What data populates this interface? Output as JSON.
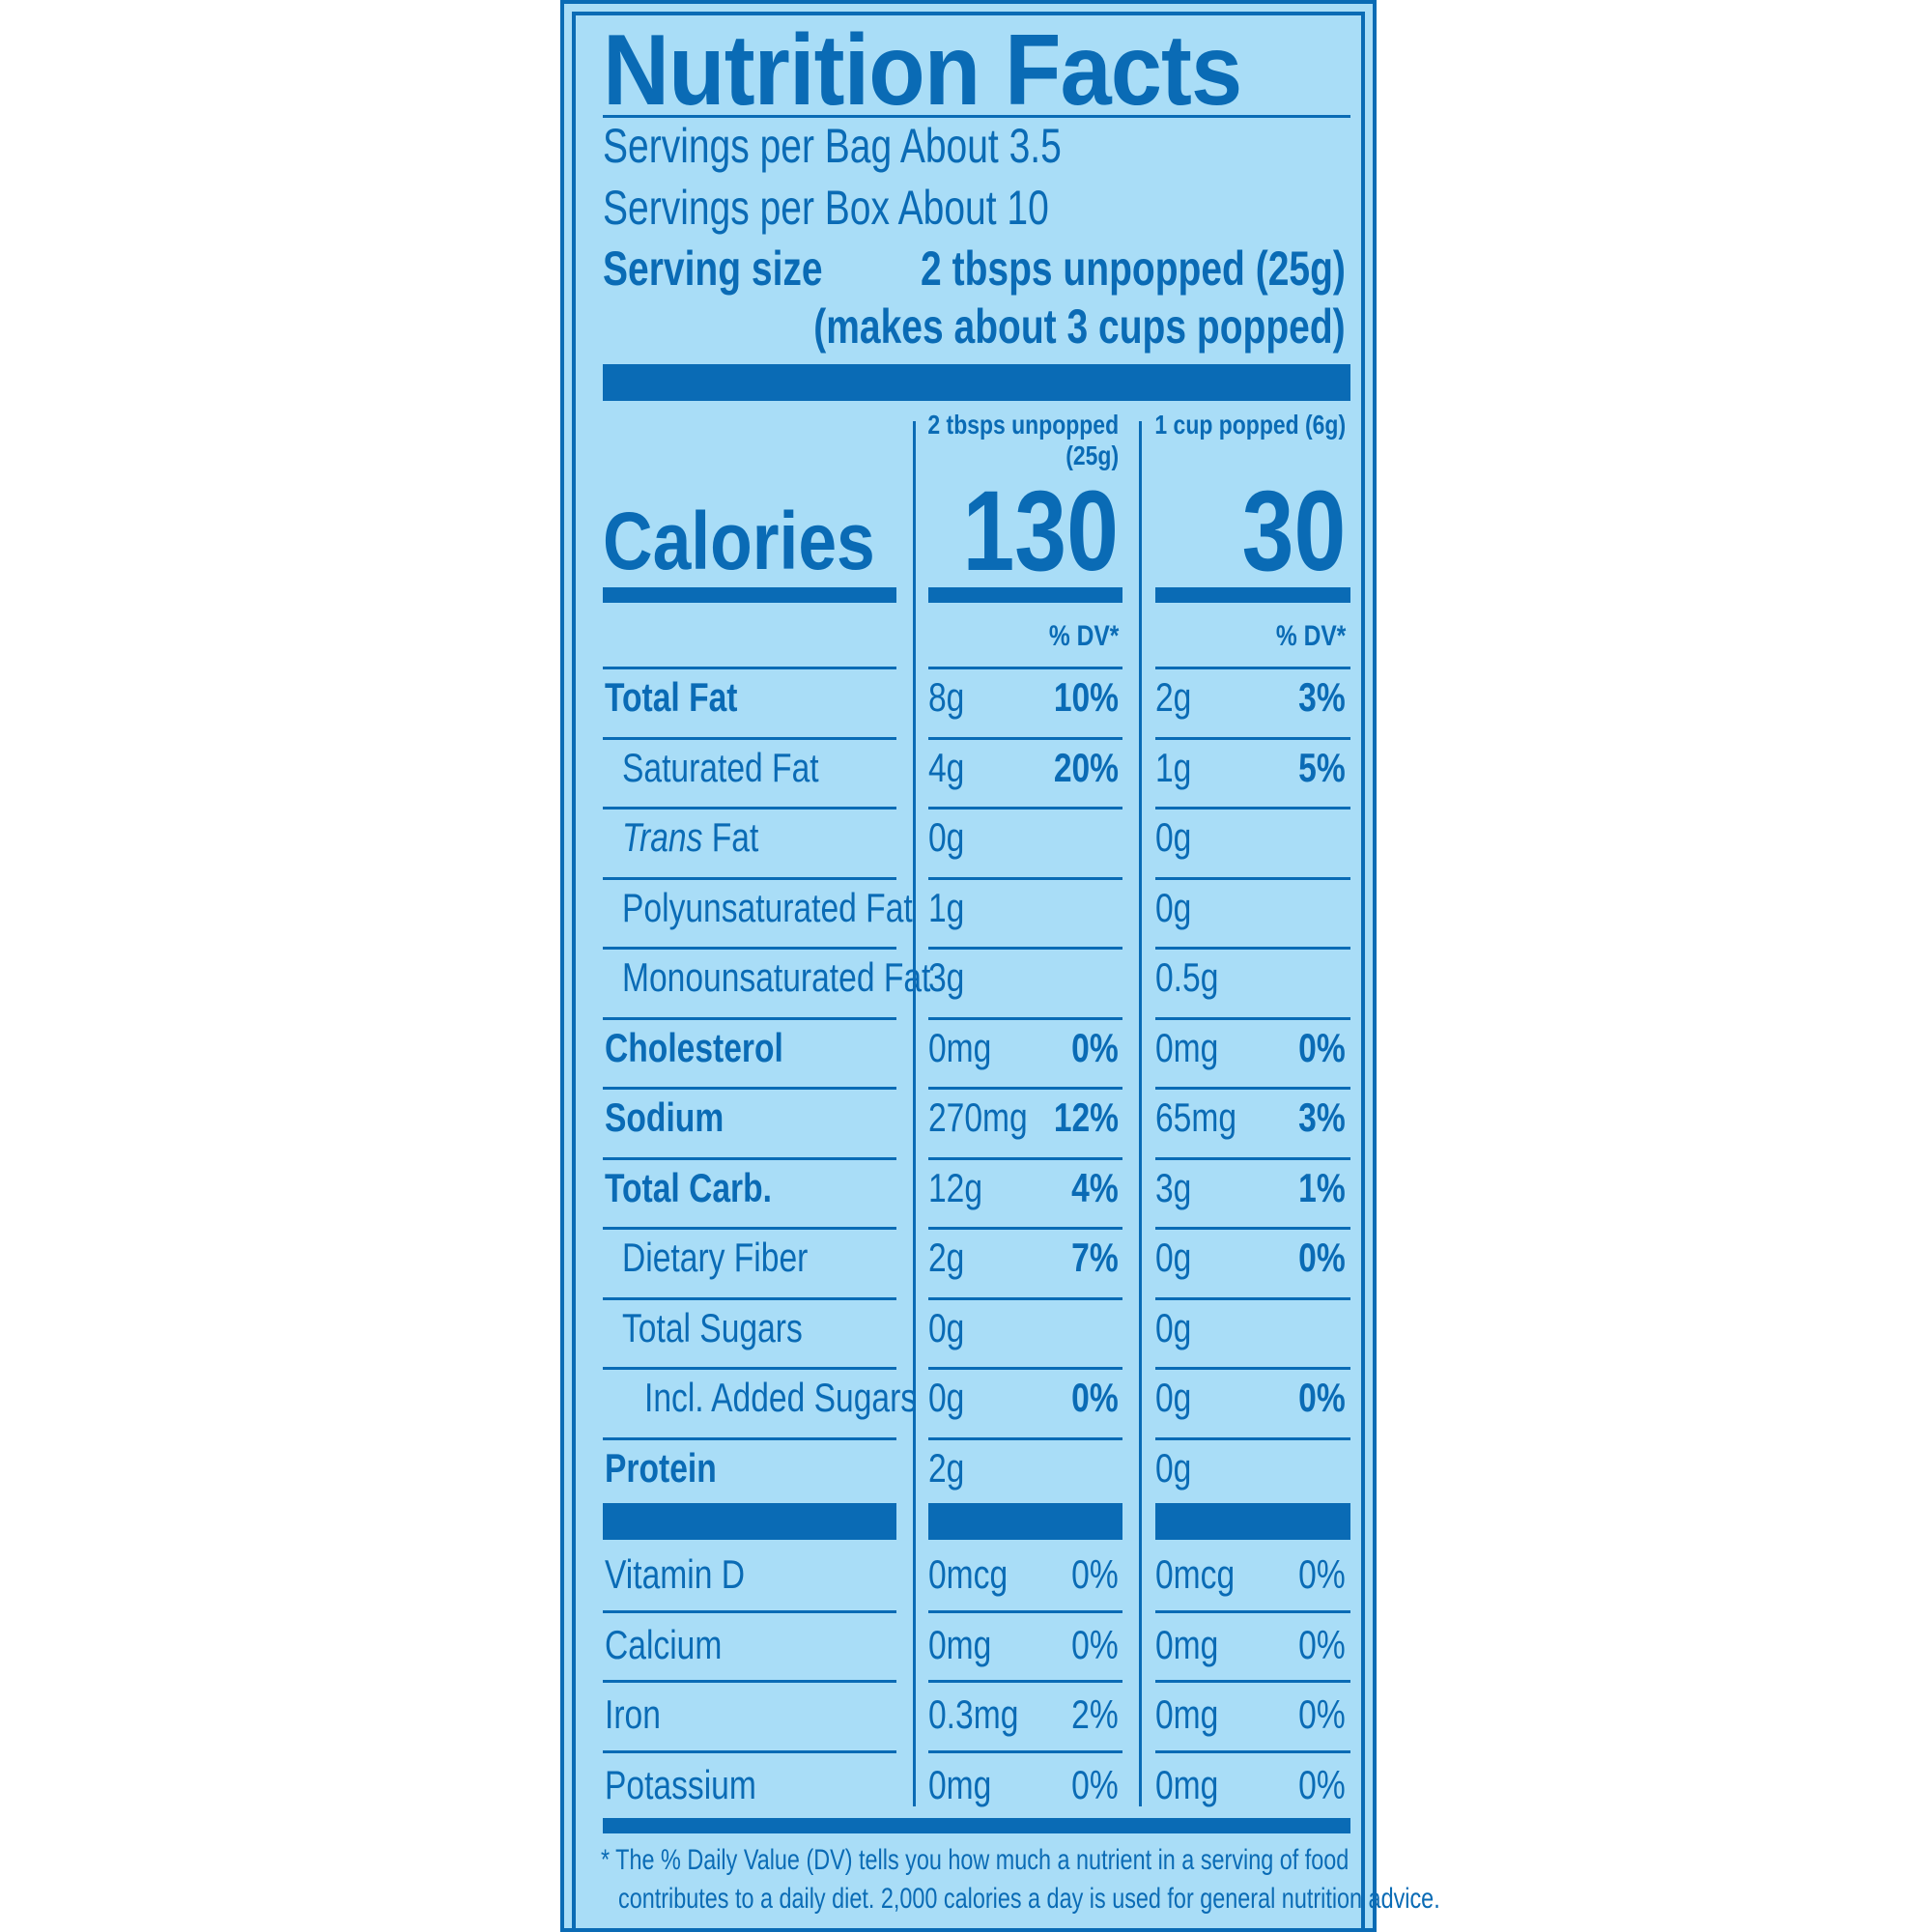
{
  "title": "Nutrition Facts",
  "servings": {
    "per_bag": "Servings per Bag About 3.5",
    "per_box": "Servings per Box About 10",
    "size_label": "Serving size",
    "size_value": "2 tbsps unpopped (25g)",
    "size_note": "(makes about 3 cups popped)"
  },
  "columns": {
    "col1_header_line1": "2 tbsps unpopped",
    "col1_header_line2": "(25g)",
    "col2_header": "1 cup popped (6g)"
  },
  "calories": {
    "label": "Calories",
    "col1": "130",
    "col2": "30"
  },
  "dv_header": "% DV*",
  "nutrients": [
    {
      "label": "Total Fat",
      "bold": true,
      "indent": 0,
      "a1": "8g",
      "p1": "10%",
      "a2": "2g",
      "p2": "3%"
    },
    {
      "label": "Saturated Fat",
      "bold": false,
      "indent": 1,
      "a1": "4g",
      "p1": "20%",
      "a2": "1g",
      "p2": "5%"
    },
    {
      "label": "Trans Fat",
      "bold": false,
      "indent": 1,
      "a1": "0g",
      "p1": "",
      "a2": "0g",
      "p2": ""
    },
    {
      "label": "Polyunsaturated Fat",
      "bold": false,
      "indent": 1,
      "a1": "1g",
      "p1": "",
      "a2": "0g",
      "p2": ""
    },
    {
      "label": "Monounsaturated Fat",
      "bold": false,
      "indent": 1,
      "a1": "3g",
      "p1": "",
      "a2": "0.5g",
      "p2": ""
    },
    {
      "label": "Cholesterol",
      "bold": true,
      "indent": 0,
      "a1": "0mg",
      "p1": "0%",
      "a2": "0mg",
      "p2": "0%"
    },
    {
      "label": "Sodium",
      "bold": true,
      "indent": 0,
      "a1": "270mg",
      "p1": "12%",
      "a2": "65mg",
      "p2": "3%"
    },
    {
      "label": "Total Carb.",
      "bold": true,
      "indent": 0,
      "a1": "12g",
      "p1": "4%",
      "a2": "3g",
      "p2": "1%"
    },
    {
      "label": "Dietary Fiber",
      "bold": false,
      "indent": 1,
      "a1": "2g",
      "p1": "7%",
      "a2": "0g",
      "p2": "0%"
    },
    {
      "label": "Total Sugars",
      "bold": false,
      "indent": 1,
      "a1": "0g",
      "p1": "",
      "a2": "0g",
      "p2": ""
    },
    {
      "label": "Incl. Added Sugars",
      "bold": false,
      "indent": 2,
      "a1": "0g",
      "p1": "0%",
      "a2": "0g",
      "p2": "0%"
    },
    {
      "label": "Protein",
      "bold": true,
      "indent": 0,
      "a1": "2g",
      "p1": "",
      "a2": "0g",
      "p2": ""
    }
  ],
  "vitamins": [
    {
      "label": "Vitamin D",
      "a1": "0mcg",
      "p1": "0%",
      "a2": "0mcg",
      "p2": "0%"
    },
    {
      "label": "Calcium",
      "a1": "0mg",
      "p1": "0%",
      "a2": "0mg",
      "p2": "0%"
    },
    {
      "label": "Iron",
      "a1": "0.3mg",
      "p1": "2%",
      "a2": "0mg",
      "p2": "0%"
    },
    {
      "label": "Potassium",
      "a1": "0mg",
      "p1": "0%",
      "a2": "0mg",
      "p2": "0%"
    }
  ],
  "footnote_line1": "* The % Daily Value (DV) tells you how much a nutrient in a serving of food",
  "footnote_line2": "contributes to a daily diet. 2,000 calories a day is used for general nutrition advice."
}
